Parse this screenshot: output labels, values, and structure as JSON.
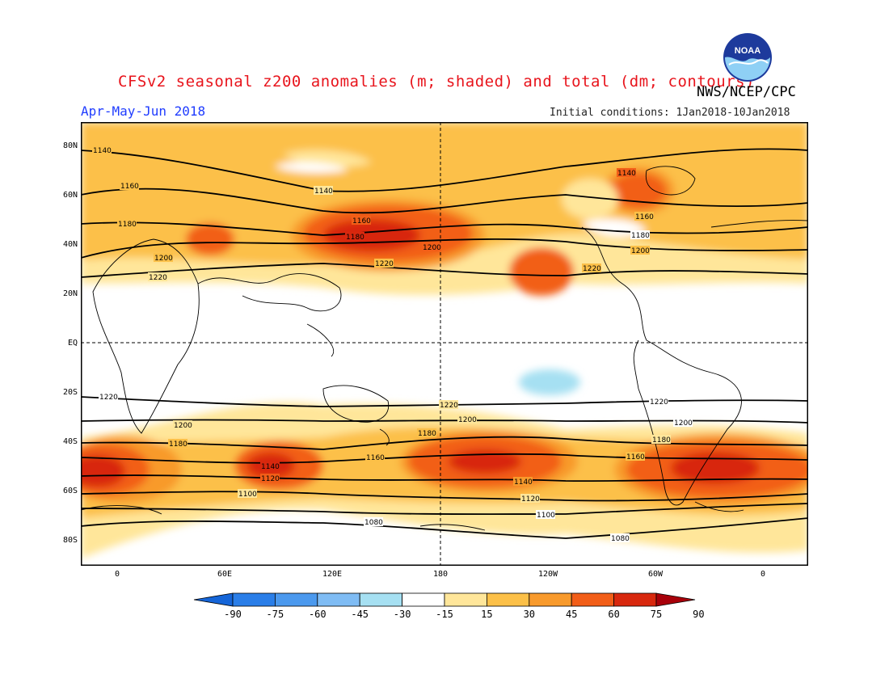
{
  "title": "CFSv2 seasonal z200 anomalies (m; shaded) and total (dm; contours)",
  "agency": "NWS/NCEP/CPC",
  "logo_text": "NOAA",
  "season": "Apr-May-Jun 2018",
  "initial_conditions": "Initial conditions: 1Jan2018-10Jan2018",
  "lat_labels": [
    "80N",
    "60N",
    "40N",
    "20N",
    "EQ",
    "20S",
    "40S",
    "60S",
    "80S"
  ],
  "lon_labels": [
    "0",
    "60E",
    "120E",
    "180",
    "120W",
    "60W",
    "0"
  ],
  "colorbar": {
    "values": [
      "-90",
      "-75",
      "-60",
      "-45",
      "-30",
      "-15",
      "15",
      "30",
      "45",
      "60",
      "75",
      "90"
    ],
    "colors": [
      "#1565d8",
      "#2a7ee8",
      "#4b99ee",
      "#7fbcf4",
      "#a6e0f2",
      "#ffffff",
      "#ffe69a",
      "#fcc048",
      "#f89a2c",
      "#f25e18",
      "#d8280e",
      "#a8000a"
    ]
  },
  "contour_labels": {
    "nh": [
      "1140",
      "1160",
      "1180",
      "1200",
      "1220"
    ],
    "sh": [
      "1220",
      "1200",
      "1180",
      "1160",
      "1140",
      "1120",
      "1100",
      "1080"
    ]
  },
  "colors": {
    "land_outline": "#000000",
    "contour": "#000000",
    "title": "#e8141c",
    "season": "#1f3cff"
  }
}
